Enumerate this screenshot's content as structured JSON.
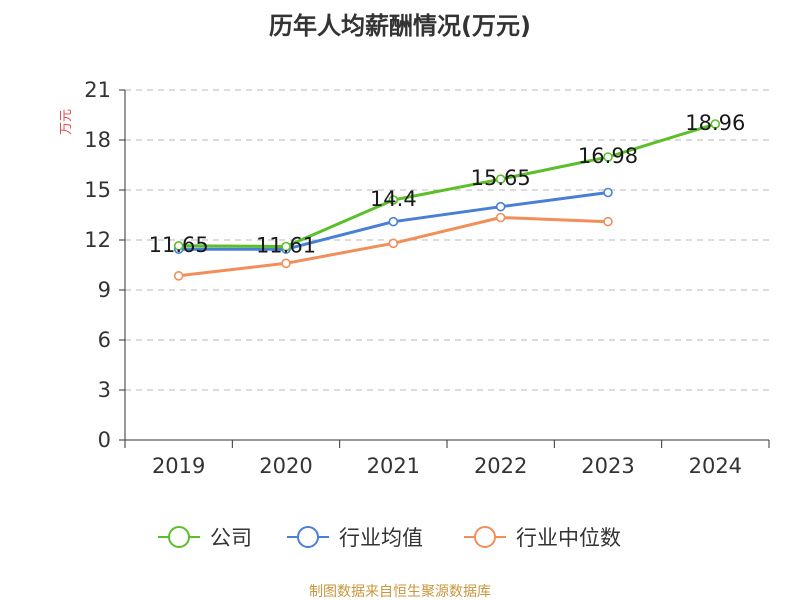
{
  "chart_data": {
    "type": "line",
    "title": "历年人均薪酬情况(万元)",
    "ylabel": "万元",
    "xlabel": "",
    "ylim": [
      0,
      21
    ],
    "yticks": [
      0,
      3,
      6,
      9,
      12,
      15,
      18,
      21
    ],
    "categories": [
      "2019",
      "2020",
      "2021",
      "2022",
      "2023",
      "2024"
    ],
    "grid": true,
    "legend_position": "bottom",
    "series": [
      {
        "name": "公司",
        "color": "#5cbf2a",
        "values": [
          11.65,
          11.61,
          14.4,
          15.65,
          16.98,
          18.96
        ],
        "labels": [
          "11.65",
          "11.61",
          "14.4",
          "15.65",
          "16.98",
          "18.96"
        ]
      },
      {
        "name": "行业均值",
        "color": "#4a7fd6",
        "values": [
          11.45,
          11.45,
          13.1,
          14.0,
          14.85,
          null
        ]
      },
      {
        "name": "行业中位数",
        "color": "#f28e5a",
        "values": [
          9.85,
          10.6,
          11.8,
          13.35,
          13.1,
          null
        ]
      }
    ]
  },
  "footer": {
    "source": "制图数据来自恒生聚源数据库"
  }
}
